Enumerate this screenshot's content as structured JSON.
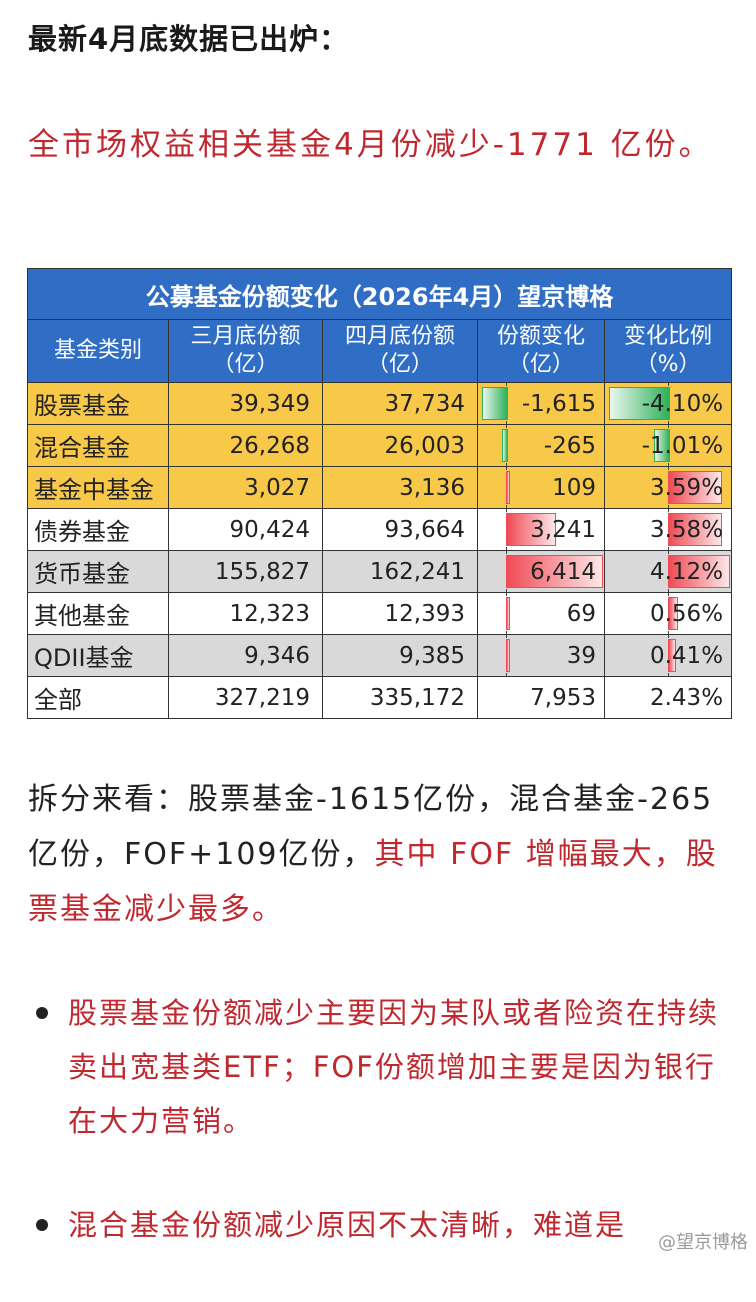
{
  "heading": "最新4月底数据已出炉：",
  "lead": "全市场权益相关基金4月份减少-1771 亿份。",
  "table": {
    "title": "公募基金份额变化（2026年4月）望京博格",
    "headers": [
      "基金类别",
      "三月底份额（亿）",
      "四月底份额（亿）",
      "份额变化（亿）",
      "变化比例（%）"
    ],
    "rows": [
      {
        "name": "股票基金",
        "mar": "39,349",
        "apr": "37,734",
        "chg": "-1,615",
        "pct": "-4.10%",
        "chg_value": -1615,
        "pct_value": -4.1,
        "color": "yellow"
      },
      {
        "name": "混合基金",
        "mar": "26,268",
        "apr": "26,003",
        "chg": "-265",
        "pct": "-1.01%",
        "chg_value": -265,
        "pct_value": -1.01,
        "color": "yellow"
      },
      {
        "name": "基金中基金",
        "mar": "3,027",
        "apr": "3,136",
        "chg": "109",
        "pct": "3.59%",
        "chg_value": 109,
        "pct_value": 3.59,
        "color": "yellow"
      },
      {
        "name": "债券基金",
        "mar": "90,424",
        "apr": "93,664",
        "chg": "3,241",
        "pct": "3.58%",
        "chg_value": 3241,
        "pct_value": 3.58,
        "color": "white"
      },
      {
        "name": "货币基金",
        "mar": "155,827",
        "apr": "162,241",
        "chg": "6,414",
        "pct": "4.12%",
        "chg_value": 6414,
        "pct_value": 4.12,
        "color": "gray"
      },
      {
        "name": "其他基金",
        "mar": "12,323",
        "apr": "12,393",
        "chg": "69",
        "pct": "0.56%",
        "chg_value": 69,
        "pct_value": 0.56,
        "color": "white"
      },
      {
        "name": "QDII基金",
        "mar": "9,346",
        "apr": "9,385",
        "chg": "39",
        "pct": "0.41%",
        "chg_value": 39,
        "pct_value": 0.41,
        "color": "gray"
      },
      {
        "name": "全部",
        "mar": "327,219",
        "apr": "335,172",
        "chg": "7,953",
        "pct": "2.43%",
        "color": "white"
      }
    ],
    "bar_colors": {
      "negative": "#2fb15a",
      "positive": "#f04b55"
    }
  },
  "paragraph2": {
    "black": "拆分来看：股票基金-1615亿份，混合基金-265 亿份，FOF+109亿份，",
    "red": "其中 FOF 增幅最大，股票基金减少最多。"
  },
  "bullets": [
    "股票基金份额减少主要因为某队或者险资在持续卖出宽基类ETF；FOF份额增加主要是因为银行在大力营销。",
    "混合基金份额减少原因不太清晰，难道是"
  ],
  "watermark": "@望京博格"
}
